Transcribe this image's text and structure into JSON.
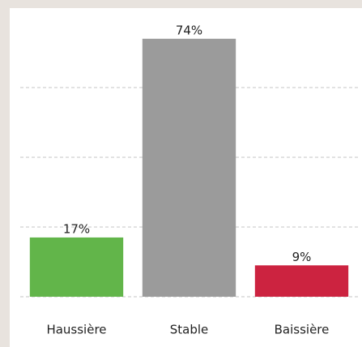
{
  "chart_data": {
    "type": "bar",
    "categories": [
      "Haussière",
      "Stable",
      "Baissière"
    ],
    "values": [
      17,
      74,
      9
    ],
    "value_labels": [
      "17%",
      "74%",
      "9%"
    ],
    "colors": [
      "#62b54a",
      "#9b9b9b",
      "#cc2340"
    ],
    "ylim": [
      0,
      80
    ],
    "yticks": [
      0,
      20,
      40,
      60
    ],
    "grid": true
  }
}
